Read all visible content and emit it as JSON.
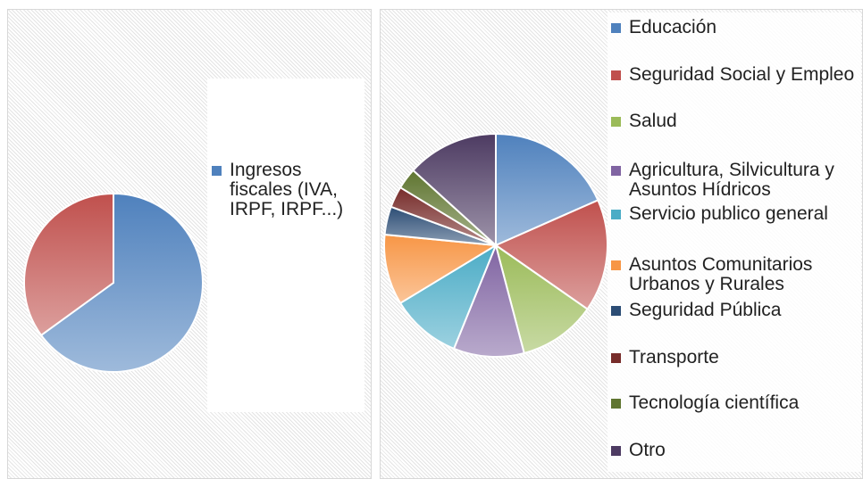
{
  "chart_data": [
    {
      "type": "pie",
      "categories": [
        "Ingresos fiscales (IVA, IRPF, IRPF...)",
        null
      ],
      "values": [
        65,
        35
      ],
      "colors": [
        "#4f81bd",
        "#c0504d"
      ]
    },
    {
      "type": "pie",
      "categories": [
        "Educación",
        "Seguridad Social y Empleo",
        "Salud",
        "Agricultura, Silvicultura y Asuntos Hídricos",
        "Servicio publico general",
        "Asuntos Comunitarios Urbanos y Rurales",
        "Seguridad Pública",
        "Transporte",
        "Tecnología científica",
        "Otro"
      ],
      "values": [
        18,
        16,
        11,
        10,
        10,
        10,
        4,
        3,
        3,
        13
      ],
      "colors": [
        "#4f81bd",
        "#c0504d",
        "#9bbb59",
        "#8064a2",
        "#4bacc6",
        "#f79646",
        "#2c4d75",
        "#772c2a",
        "#5f7530",
        "#4d3b62"
      ]
    }
  ]
}
